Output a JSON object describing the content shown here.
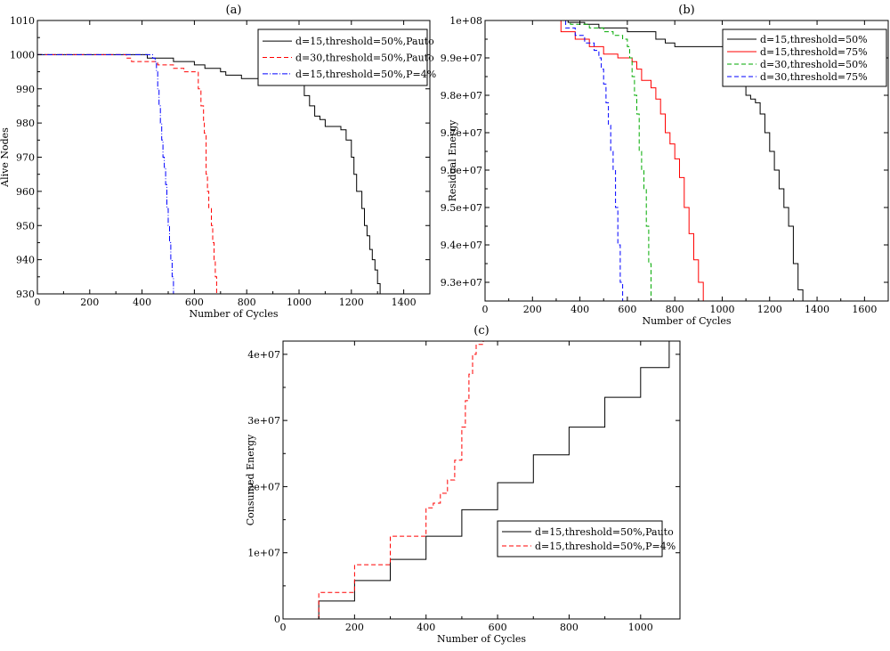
{
  "chart_data": [
    {
      "type": "line",
      "title": "(a)",
      "xlabel": "Number of Cycles",
      "ylabel": "Alive Nodes",
      "xlim": [
        0,
        1500
      ],
      "ylim": [
        930,
        1010
      ],
      "xticks": [
        0,
        200,
        400,
        600,
        800,
        1000,
        1200,
        1400
      ],
      "yticks": [
        930,
        940,
        950,
        960,
        970,
        980,
        990,
        1000,
        1010
      ],
      "ytick_labels": [
        "930",
        "940",
        "950",
        "960",
        "970",
        "980",
        "990",
        "1000",
        "1010"
      ],
      "legend_position": "top-right",
      "series": [
        {
          "name": "d=15,threshold=50%,Pauto",
          "color": "#000000",
          "dash": "solid",
          "x": [
            0,
            400,
            420,
            500,
            520,
            600,
            640,
            700,
            720,
            760,
            780,
            800,
            900,
            980,
            1000,
            1020,
            1040,
            1060,
            1080,
            1100,
            1120,
            1140,
            1160,
            1180,
            1200,
            1210,
            1220,
            1240,
            1250,
            1260,
            1270,
            1280,
            1290,
            1300,
            1310
          ],
          "y": [
            1000,
            1000,
            999,
            999,
            998,
            997,
            996,
            995,
            994,
            994,
            993,
            993,
            993,
            993,
            991,
            988,
            985,
            982,
            981,
            979,
            979,
            979,
            978,
            975,
            970,
            965,
            960,
            955,
            950,
            947,
            943,
            940,
            937,
            933,
            930
          ]
        },
        {
          "name": "d=30,threshold=50%,Pauto",
          "color": "#ff0000",
          "dash": "dashed",
          "x": [
            0,
            330,
            340,
            360,
            400,
            440,
            460,
            480,
            520,
            560,
            600,
            615,
            625,
            635,
            638,
            645,
            650,
            655,
            665,
            670,
            675,
            680,
            685
          ],
          "y": [
            1000,
            1000,
            999,
            998,
            998,
            998,
            997,
            997,
            996,
            995,
            995,
            990,
            985,
            980,
            977,
            965,
            960,
            955,
            950,
            945,
            940,
            935,
            930
          ]
        },
        {
          "name": "d=15,threshold=50%,P=4%",
          "color": "#0000ff",
          "dash": "dashdot",
          "x": [
            0,
            420,
            440,
            450,
            455,
            460,
            465,
            470,
            475,
            480,
            485,
            490,
            495,
            500,
            505,
            510,
            515,
            520
          ],
          "y": [
            1000,
            1000,
            999,
            998,
            995,
            990,
            985,
            980,
            975,
            970,
            967,
            962,
            955,
            950,
            945,
            940,
            935,
            930
          ]
        }
      ]
    },
    {
      "type": "line",
      "title": "(b)",
      "xlabel": "Number of Cycles",
      "ylabel": "Residual Energy",
      "xlim": [
        0,
        1700
      ],
      "ylim": [
        92500000,
        100000000
      ],
      "xticks": [
        0,
        200,
        400,
        600,
        800,
        1000,
        1200,
        1400,
        1600
      ],
      "yticks": [
        93000000,
        94000000,
        95000000,
        96000000,
        97000000,
        98000000,
        99000000,
        100000000
      ],
      "ytick_labels": [
        "9.3e+07",
        "9.4e+07",
        "9.5e+07",
        "9.6e+07",
        "9.7e+07",
        "9.8e+07",
        "9.9e+07",
        "1e+08"
      ],
      "legend_position": "top-right",
      "series": [
        {
          "name": "d=15,threshold=50%",
          "color": "#000000",
          "dash": "solid",
          "x": [
            290,
            350,
            420,
            480,
            600,
            720,
            760,
            800,
            920,
            1000,
            1020,
            1040,
            1060,
            1080,
            1100,
            1120,
            1140,
            1160,
            1180,
            1200,
            1220,
            1240,
            1260,
            1280,
            1300,
            1320,
            1340
          ],
          "y": [
            100000000,
            99950000,
            99900000,
            99800000,
            99700000,
            99500000,
            99400000,
            99300000,
            99300000,
            99300000,
            99100000,
            98800000,
            98500000,
            98300000,
            98000000,
            97900000,
            97800000,
            97500000,
            97000000,
            96500000,
            96000000,
            95500000,
            95000000,
            94500000,
            93500000,
            92800000,
            92500000
          ]
        },
        {
          "name": "d=15,threshold=75%",
          "color": "#ff0000",
          "dash": "solid",
          "x": [
            270,
            320,
            380,
            440,
            500,
            560,
            620,
            640,
            660,
            700,
            720,
            740,
            760,
            780,
            800,
            820,
            840,
            860,
            880,
            900,
            920
          ],
          "y": [
            100000000,
            99700000,
            99500000,
            99300000,
            99100000,
            99000000,
            98900000,
            98700000,
            98400000,
            98200000,
            97900000,
            97500000,
            97000000,
            96700000,
            96300000,
            95800000,
            95000000,
            94300000,
            93600000,
            93000000,
            92500000
          ]
        },
        {
          "name": "d=30,threshold=50%",
          "color": "#00aa00",
          "dash": "dashed",
          "x": [
            280,
            360,
            440,
            500,
            540,
            580,
            600,
            610,
            620,
            630,
            640,
            650,
            660,
            670,
            680,
            690,
            700
          ],
          "y": [
            100000000,
            99900000,
            99800000,
            99700000,
            99600000,
            99500000,
            99300000,
            99000000,
            98500000,
            98000000,
            97500000,
            96500000,
            96000000,
            95500000,
            94500000,
            93500000,
            92500000
          ]
        },
        {
          "name": "d=30,threshold=75%",
          "color": "#0000ff",
          "dash": "dashed",
          "x": [
            280,
            340,
            380,
            420,
            460,
            480,
            490,
            500,
            510,
            520,
            530,
            540,
            550,
            560,
            570,
            580
          ],
          "y": [
            100000000,
            99800000,
            99600000,
            99400000,
            99200000,
            99000000,
            98700000,
            98300000,
            97800000,
            97200000,
            96500000,
            96000000,
            95000000,
            94000000,
            93000000,
            92500000
          ]
        }
      ]
    },
    {
      "type": "line",
      "title": "(c)",
      "xlabel": "Number of Cycles",
      "ylabel": "Consumed Energy",
      "xlim": [
        0,
        1110
      ],
      "ylim": [
        0,
        42000000
      ],
      "xticks": [
        0,
        200,
        400,
        600,
        800,
        1000
      ],
      "yticks": [
        0,
        10000000,
        20000000,
        30000000,
        40000000
      ],
      "ytick_labels": [
        "0",
        "1e+07",
        "2e+07",
        "3e+07",
        "4e+07"
      ],
      "legend_position": "center-right",
      "series": [
        {
          "name": "d=15,threshold=50%,Pauto",
          "color": "#000000",
          "dash": "solid",
          "x": [
            0,
            100,
            200,
            300,
            400,
            500,
            600,
            700,
            800,
            900,
            1000,
            1080
          ],
          "y": [
            0,
            2700000,
            5800000,
            9000000,
            12500000,
            16500000,
            20600000,
            24800000,
            29000000,
            33500000,
            38000000,
            42000000
          ]
        },
        {
          "name": "d=15,threshold=50%,P=4%",
          "color": "#ff0000",
          "dash": "dashed",
          "x": [
            0,
            100,
            200,
            300,
            400,
            420,
            440,
            460,
            480,
            500,
            510,
            520,
            530,
            540,
            560,
            590
          ],
          "y": [
            0,
            4000000,
            8200000,
            12500000,
            16800000,
            17500000,
            19000000,
            21000000,
            24000000,
            29000000,
            33000000,
            37000000,
            40000000,
            41500000,
            42000000,
            42000000
          ]
        }
      ]
    }
  ]
}
